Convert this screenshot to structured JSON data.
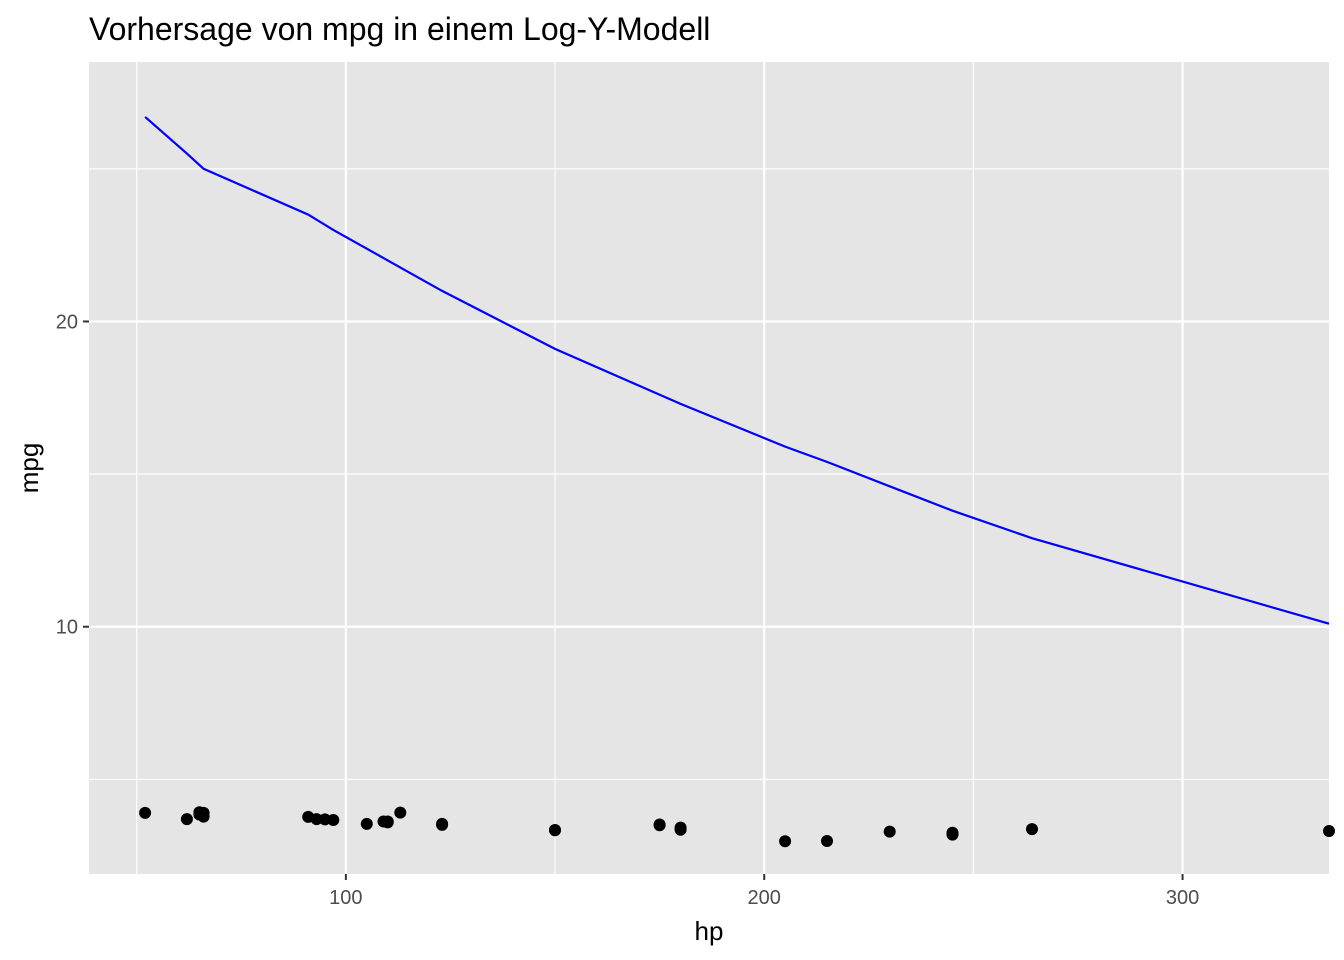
{
  "chart_data": {
    "type": "scatter",
    "title": "Vorhersage von mpg in einem Log-Y-Modell",
    "xlabel": "hp",
    "ylabel": "mpg",
    "xlim": [
      38.6,
      335
    ],
    "ylim": [
      1.9,
      28.5
    ],
    "x_ticks": [
      100,
      200,
      300
    ],
    "x_tick_labels": [
      "100",
      "200",
      "300"
    ],
    "y_ticks": [
      10,
      20
    ],
    "y_tick_labels": [
      "10",
      "20"
    ],
    "grid": true,
    "legend": "none",
    "colors": {
      "panel": "#e5e5e5",
      "grid": "#ffffff",
      "points": "#000000",
      "line": "#0000ff"
    },
    "series": [
      {
        "kind": "points",
        "x": [
          52,
          62,
          65,
          65,
          66,
          66,
          91,
          93,
          95,
          97,
          105,
          109,
          110,
          110,
          113,
          123,
          123,
          150,
          150,
          175,
          175,
          180,
          180,
          205,
          215,
          230,
          245,
          245,
          264,
          335
        ],
        "y": [
          3.9,
          3.7,
          3.92,
          3.85,
          3.9,
          3.78,
          3.77,
          3.7,
          3.69,
          3.67,
          3.54,
          3.62,
          3.62,
          3.59,
          3.91,
          3.54,
          3.51,
          3.34,
          3.33,
          3.52,
          3.5,
          3.42,
          3.35,
          2.97,
          2.98,
          3.29,
          3.25,
          3.19,
          3.37,
          3.31
        ]
      },
      {
        "kind": "line",
        "x": [
          52,
          62,
          66,
          91,
          97,
          110,
          123,
          150,
          180,
          205,
          215,
          230,
          245,
          264,
          335
        ],
        "y": [
          26.7,
          25.5,
          25.0,
          23.5,
          23.0,
          22.0,
          21.0,
          19.1,
          17.3,
          15.9,
          15.4,
          14.6,
          13.8,
          12.9,
          10.1
        ]
      }
    ]
  }
}
